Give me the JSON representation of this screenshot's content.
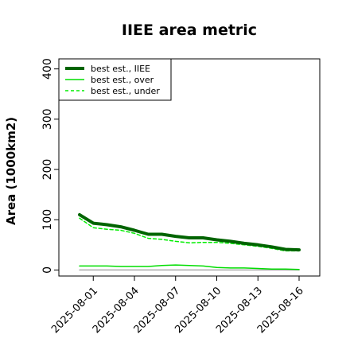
{
  "chart_data": {
    "type": "line",
    "title": "IIEE area metric",
    "xlabel": "",
    "ylabel": "Area (1000km2)",
    "ylim": [
      -12,
      420
    ],
    "yticks": [
      0,
      100,
      200,
      300,
      400
    ],
    "x_dates": [
      "2025-07-31",
      "2025-08-01",
      "2025-08-02",
      "2025-08-03",
      "2025-08-04",
      "2025-08-05",
      "2025-08-06",
      "2025-08-07",
      "2025-08-08",
      "2025-08-09",
      "2025-08-10",
      "2025-08-11",
      "2025-08-12",
      "2025-08-13",
      "2025-08-14",
      "2025-08-15",
      "2025-08-16"
    ],
    "xtick_labels": [
      "2025-08-01",
      "2025-08-04",
      "2025-08-07",
      "2025-08-10",
      "2025-08-13",
      "2025-08-16"
    ],
    "legend_position": "top-left",
    "grid": false,
    "series": [
      {
        "name": "best est., IIEE",
        "color": "#006400",
        "style": "solid-thick",
        "values": [
          110,
          93,
          90,
          86,
          79,
          71,
          71,
          67,
          64,
          64,
          60,
          57,
          53,
          50,
          46,
          41,
          40
        ]
      },
      {
        "name": "best est., over",
        "color": "#00dd00",
        "style": "solid-thin",
        "values": [
          8,
          8,
          8,
          7,
          7,
          7,
          9,
          10,
          9,
          8,
          5,
          4,
          4,
          3,
          2,
          2,
          1
        ]
      },
      {
        "name": "best est., under",
        "color": "#00ee00",
        "style": "dashed",
        "values": [
          103,
          84,
          81,
          79,
          73,
          63,
          61,
          57,
          54,
          55,
          55,
          53,
          50,
          47,
          43,
          38,
          38
        ]
      },
      {
        "name": "",
        "color": "#aaaaaa",
        "style": "solid-thin",
        "values": [
          0,
          0,
          0,
          0,
          0,
          0,
          0,
          0,
          0,
          0,
          0,
          0,
          0,
          0,
          0,
          0,
          0
        ]
      }
    ]
  }
}
